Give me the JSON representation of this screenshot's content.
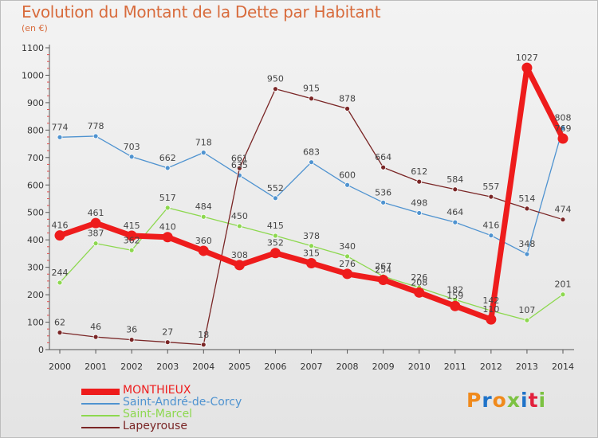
{
  "title": "Evolution du Montant de la Dette par Habitant",
  "unit_label": "(en €)",
  "logo": {
    "text": "Proxiti",
    "letter_colors": [
      "#f08a1c",
      "#1f73c9",
      "#f08a1c",
      "#7cc242",
      "#1f73c9",
      "#e2203c",
      "#7cc242"
    ]
  },
  "chart_data": {
    "type": "line",
    "title": "Evolution du Montant de la Dette par Habitant",
    "ylabel": "(en €)",
    "x": [
      "2000",
      "2001",
      "2002",
      "2003",
      "2004",
      "2005",
      "2006",
      "2007",
      "2008",
      "2009",
      "2010",
      "2011",
      "2012",
      "2013",
      "2014"
    ],
    "ylim": [
      0,
      1100
    ],
    "yticks": [
      0,
      100,
      200,
      300,
      400,
      500,
      600,
      700,
      800,
      900,
      1000,
      1100
    ],
    "grid": "minor y ticks only",
    "legend_position": "bottom-left",
    "series": [
      {
        "name": "MONTHIEUX",
        "color": "#ee1c1c",
        "emphasis": true,
        "values": [
          416,
          461,
          415,
          410,
          360,
          308,
          352,
          315,
          276,
          254,
          208,
          159,
          110,
          1027,
          769
        ],
        "labels": [
          "416",
          "461",
          "415",
          "410",
          "360",
          "308",
          "352",
          "315",
          "276",
          "254",
          "208",
          "159",
          "110",
          "1027",
          "769"
        ]
      },
      {
        "name": "Saint-André-de-Corcy",
        "color": "#4f93d0",
        "values": [
          774,
          778,
          703,
          662,
          718,
          635,
          552,
          683,
          600,
          536,
          498,
          464,
          416,
          348,
          808
        ],
        "labels": [
          "774",
          "778",
          "703",
          "662",
          "718",
          "635",
          "552",
          "683",
          "600",
          "536",
          "498",
          "464",
          "416",
          "348",
          "808"
        ]
      },
      {
        "name": "Saint-Marcel",
        "color": "#8dd84f",
        "values": [
          244,
          387,
          362,
          517,
          484,
          450,
          415,
          378,
          340,
          267,
          226,
          182,
          142,
          107,
          201
        ],
        "labels": [
          "244",
          "387",
          "362",
          "517",
          "484",
          "450",
          "415",
          "378",
          "340",
          "267",
          "226",
          "182",
          "142",
          "107",
          "201"
        ]
      },
      {
        "name": "Lapeyrouse",
        "color": "#7a2626",
        "values": [
          62,
          46,
          36,
          27,
          18,
          661,
          950,
          915,
          878,
          664,
          612,
          584,
          557,
          514,
          474
        ],
        "labels": [
          "62",
          "46",
          "36",
          "27",
          "18",
          "661",
          "950",
          "915",
          "878",
          "664",
          "612",
          "584",
          "557",
          "514",
          "474"
        ]
      }
    ]
  }
}
